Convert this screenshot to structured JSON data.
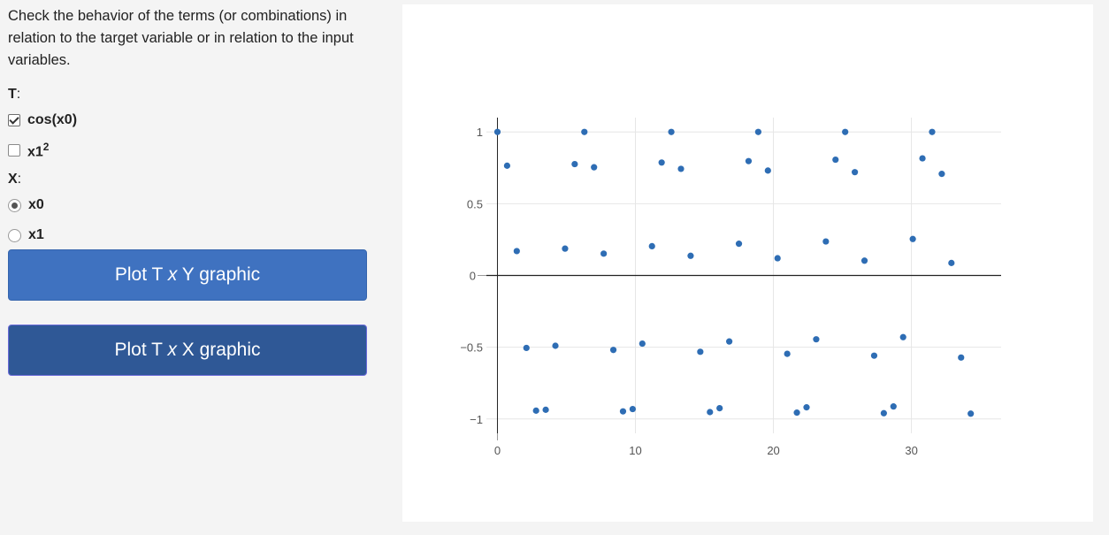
{
  "description": "Check the behavior of the terms (or combinations) in relation to the target variable or in relation to the input variables.",
  "terms_group": {
    "label": "T",
    "options": [
      {
        "base": "cos(x0)",
        "sup": "",
        "checked": true
      },
      {
        "base": "x1",
        "sup": "2",
        "checked": false
      }
    ]
  },
  "x_group": {
    "label": "X",
    "options": [
      {
        "label": "x0",
        "selected": true
      },
      {
        "label": "x1",
        "selected": false
      }
    ]
  },
  "buttons": {
    "plot_txy_prefix": "Plot T ",
    "plot_txy_italic": "x",
    "plot_txy_suffix": " Y graphic",
    "plot_txx_prefix": "Plot T ",
    "plot_txx_italic": "x",
    "plot_txx_suffix": " X graphic"
  },
  "chart_data": {
    "type": "scatter",
    "title": "",
    "xlabel": "",
    "ylabel": "",
    "xlim": [
      -0.8,
      36.5
    ],
    "ylim": [
      -1.1,
      1.1
    ],
    "xticks": [
      0,
      10,
      20,
      30
    ],
    "yticks": [
      1,
      0.5,
      0,
      -0.5,
      -1
    ],
    "ytick_labels": [
      "1",
      "0.5",
      "0",
      "−0.5",
      "−1"
    ],
    "grid": true,
    "marker_color": "#2e6db4",
    "series": [
      {
        "x": [
          0,
          0.7,
          1.4,
          2.1,
          2.8,
          3.5,
          4.2,
          4.9,
          5.6,
          6.3,
          7.0,
          7.7,
          8.4,
          9.1,
          9.8,
          10.5,
          11.2,
          11.9,
          12.6,
          13.3,
          14.0,
          14.7,
          15.4,
          16.1,
          16.8,
          17.5,
          18.2,
          18.9,
          19.6,
          20.3,
          21.0,
          21.7,
          22.4,
          23.1,
          23.8,
          24.5,
          25.2,
          25.9,
          26.6,
          27.3,
          28.0,
          28.7,
          29.4,
          30.1,
          30.8,
          31.5,
          32.2,
          32.9,
          33.6,
          34.3
        ],
        "y": [
          1.0,
          0.765,
          0.17,
          -0.505,
          -0.942,
          -0.936,
          -0.49,
          0.187,
          0.776,
          1.0,
          0.754,
          0.152,
          -0.519,
          -0.947,
          -0.931,
          -0.475,
          0.204,
          0.787,
          1.0,
          0.743,
          0.137,
          -0.532,
          -0.952,
          -0.925,
          -0.46,
          0.221,
          0.797,
          1.0,
          0.731,
          0.12,
          -0.546,
          -0.956,
          -0.919,
          -0.445,
          0.237,
          0.807,
          1.0,
          0.72,
          0.103,
          -0.559,
          -0.96,
          -0.913,
          -0.43,
          0.254,
          0.816,
          1.0,
          0.708,
          0.087,
          -0.572,
          -0.963
        ]
      }
    ]
  }
}
